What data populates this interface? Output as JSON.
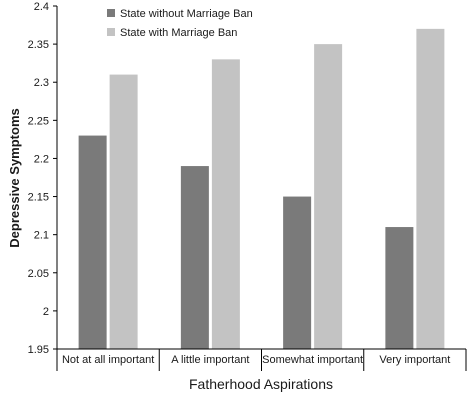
{
  "chart_data": {
    "type": "bar",
    "title": "",
    "xlabel": "Fatherhood Aspirations",
    "ylabel": "Depressive Symptoms",
    "ylim": [
      1.95,
      2.4
    ],
    "yticks": [
      "1.95",
      "2",
      "2.05",
      "2.1",
      "2.15",
      "2.2",
      "2.25",
      "2.3",
      "2.35",
      "2.4"
    ],
    "ytick_values": [
      1.95,
      2.0,
      2.05,
      2.1,
      2.15,
      2.2,
      2.25,
      2.3,
      2.35,
      2.4
    ],
    "categories": [
      "Not at all important",
      "A little important",
      "Somewhat important",
      "Very important"
    ],
    "series": [
      {
        "name": "State without Marriage Ban",
        "color": "#7a7a7a",
        "values": [
          2.23,
          2.19,
          2.15,
          2.11
        ]
      },
      {
        "name": "State with Marriage Ban",
        "color": "#c3c3c3",
        "values": [
          2.31,
          2.33,
          2.35,
          2.37
        ]
      }
    ],
    "grid": false,
    "legend": "top-left"
  }
}
